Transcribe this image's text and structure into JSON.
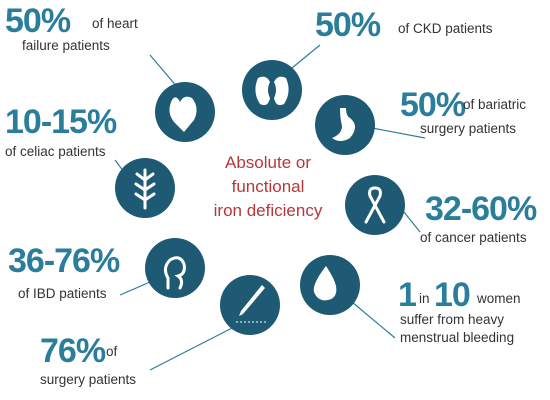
{
  "center_label": [
    "Absolute or",
    "functional",
    "iron deficiency"
  ],
  "items": [
    {
      "stat": "50%",
      "text": [
        "of heart",
        "failure patients"
      ]
    },
    {
      "stat": "50%",
      "text": [
        "of CKD patients"
      ]
    },
    {
      "stat": "50%",
      "text": [
        "of bariatric",
        "surgery patients"
      ]
    },
    {
      "stat": "32-60%",
      "text": [
        "of cancer patients"
      ]
    },
    {
      "stat": [
        "1",
        "10"
      ],
      "text": [
        "in",
        "women",
        "suffer from heavy",
        "menstrual bleeding"
      ]
    },
    {
      "stat": "76%",
      "text": [
        "of",
        "surgery patients"
      ]
    },
    {
      "stat": "36-76%",
      "text": [
        "of IBD patients"
      ]
    },
    {
      "stat": "10-15%",
      "text": [
        "of celiac patients"
      ]
    }
  ]
}
